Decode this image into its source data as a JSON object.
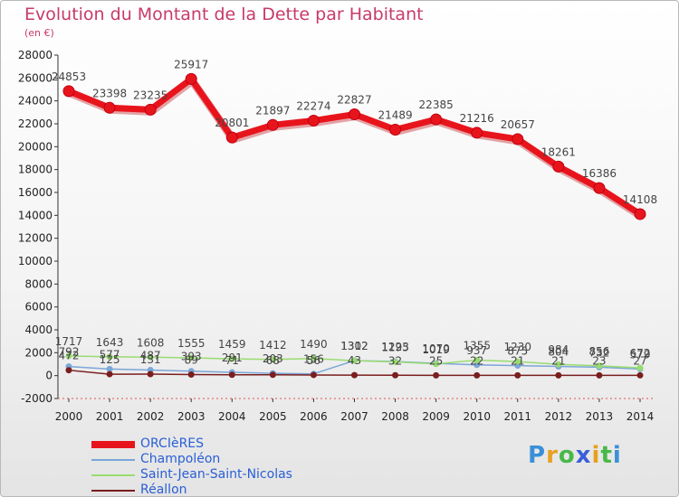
{
  "header": {
    "title": "Evolution du Montant de la Dette par Habitant",
    "subtitle": "(en €)"
  },
  "colors": {
    "title": "#c83a6a",
    "legend_text": "#2a5fd6"
  },
  "logo": {
    "letters": [
      "P",
      "r",
      "o",
      "x",
      "i",
      "t",
      "i"
    ],
    "colors": [
      "#3a8fd8",
      "#e8a020",
      "#48b848",
      "#3a5fd8",
      "#e8a020",
      "#48b848",
      "#3a8fd8"
    ]
  },
  "chart_data": {
    "type": "line",
    "title": "Evolution du Montant de la Dette par Habitant",
    "ylabel": "(en €)",
    "xlabel": "",
    "ylim": [
      -2000,
      28000
    ],
    "ytick_step": 2000,
    "grid": false,
    "categories": [
      "2000",
      "2001",
      "2002",
      "2003",
      "2004",
      "2005",
      "2006",
      "2007",
      "2008",
      "2009",
      "2010",
      "2011",
      "2012",
      "2013",
      "2014"
    ],
    "series": [
      {
        "name": "ORCIèRES",
        "color": "#e8141c",
        "weight": "thick",
        "values": [
          24853,
          23398,
          23235,
          25917,
          20801,
          21897,
          22274,
          22827,
          21489,
          22385,
          21216,
          20657,
          18261,
          16386,
          14108
        ],
        "labels": [
          "24853",
          "23398",
          "23235",
          "25917",
          "20801",
          "21897",
          "22274",
          "22827",
          "21489",
          "22385",
          "21216",
          "20657",
          "18261",
          "16386",
          "14108"
        ]
      },
      {
        "name": "Champoléon",
        "color": "#7ba6d8",
        "weight": "thin",
        "values": [
          792,
          577,
          487,
          393,
          291,
          203,
          156,
          1312,
          1223,
          1070,
          937,
          875,
          804,
          732,
          579
        ],
        "labels": [
          "792",
          "577",
          "487",
          "393",
          "291",
          "203",
          "156",
          "1312",
          "1223",
          "1070",
          "937",
          "875",
          "804",
          "732",
          "579"
        ]
      },
      {
        "name": "Saint-Jean-Saint-Nicolas",
        "color": "#98dc70",
        "weight": "thin",
        "values": [
          1717,
          1643,
          1608,
          1555,
          1459,
          1412,
          1490,
          1302,
          1195,
          1019,
          1355,
          1230,
          984,
          856,
          672
        ],
        "labels": [
          "1717",
          "1643",
          "1608",
          "1555",
          "1459",
          "1412",
          "1490",
          "1302",
          "1195",
          "1019",
          "1355",
          "1230",
          "984",
          "856",
          "672"
        ]
      },
      {
        "name": "Réallon",
        "color": "#7a1e1e",
        "weight": "thin",
        "values": [
          472,
          125,
          131,
          89,
          71,
          68,
          56,
          43,
          32,
          25,
          22,
          21,
          21,
          23,
          27
        ],
        "labels": [
          "472",
          "125",
          "131",
          "89",
          "71",
          "68",
          "56",
          "43",
          "32",
          "25",
          "22",
          "21",
          "21",
          "23",
          "27"
        ]
      }
    ]
  }
}
